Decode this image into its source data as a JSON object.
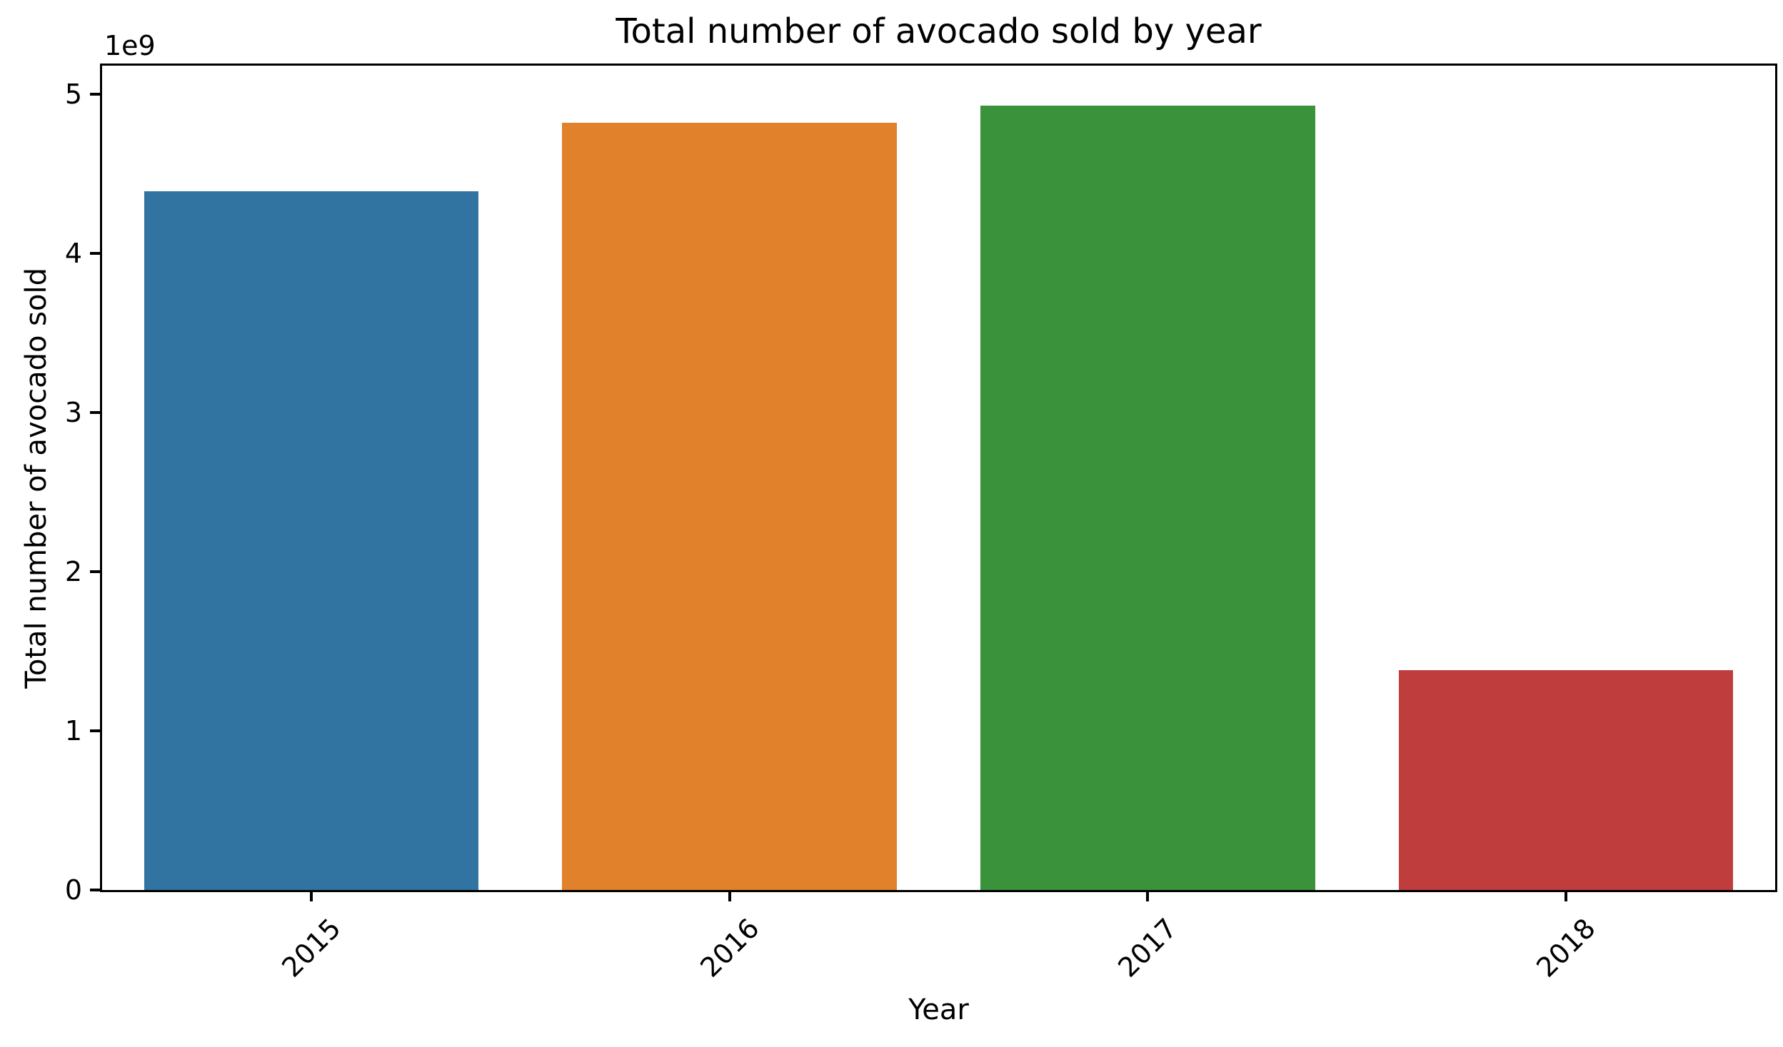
{
  "figure": {
    "title": "Total number of avocado sold by year",
    "offset_text": "1e9",
    "xlabel": "Year",
    "ylabel": "Total number of avocado sold",
    "background_color": "#ffffff",
    "spine_color": "#000000",
    "text_color": "#000000"
  },
  "chart_data": {
    "type": "bar",
    "title": "Total number of avocado sold by year",
    "xlabel": "Year",
    "ylabel": "Total number of avocado sold",
    "categories": [
      "2015",
      "2016",
      "2017",
      "2018"
    ],
    "values": [
      4390000000,
      4820000000,
      4930000000,
      1380000000
    ],
    "bar_colors": [
      "#3274a1",
      "#e1812c",
      "#3a923a",
      "#c03d3e"
    ],
    "ylim": [
      0,
      5180000000
    ],
    "yticks": [
      0,
      1,
      2,
      3,
      4,
      5
    ],
    "ytick_unit": 1000000000,
    "offset_label": "1e9",
    "xtick_rotation_deg": 45,
    "bar_relative_width": 0.8,
    "grid": false,
    "legend_position": "none"
  }
}
